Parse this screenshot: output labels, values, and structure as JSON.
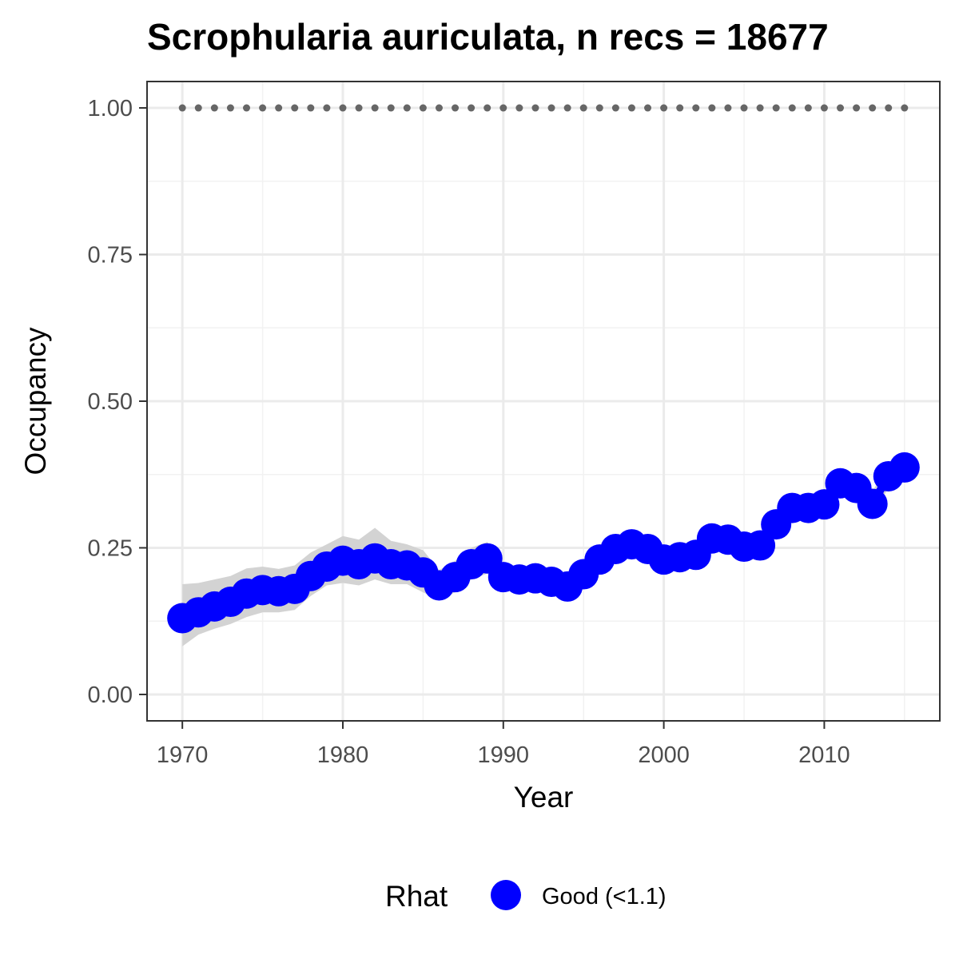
{
  "chart_data": {
    "type": "line",
    "title": "Scrophularia auriculata, n recs = 18677",
    "xlabel": "Year",
    "ylabel": "Occupancy",
    "xlim": [
      1967.8,
      2017.2
    ],
    "ylim": [
      -0.045,
      1.045
    ],
    "x_ticks": [
      1970,
      1980,
      1990,
      2000,
      2010
    ],
    "x_tick_labels": [
      "1970",
      "1980",
      "1990",
      "2000",
      "2010"
    ],
    "y_ticks": [
      0,
      0.25,
      0.5,
      0.75,
      1
    ],
    "y_tick_labels": [
      "0.00",
      "0.25",
      "0.50",
      "0.75",
      "1.00"
    ],
    "grid": true,
    "series": [
      {
        "name": "Good (<1.1)",
        "color": "#0000ff",
        "x": [
          1970,
          1971,
          1972,
          1973,
          1974,
          1975,
          1976,
          1977,
          1978,
          1979,
          1980,
          1981,
          1982,
          1983,
          1984,
          1985,
          1986,
          1987,
          1988,
          1989,
          1990,
          1991,
          1992,
          1993,
          1994,
          1995,
          1996,
          1997,
          1998,
          1999,
          2000,
          2001,
          2002,
          2003,
          2004,
          2005,
          2006,
          2007,
          2008,
          2009,
          2010,
          2011,
          2012,
          2013,
          2014,
          2015
        ],
        "y": [
          0.13,
          0.14,
          0.15,
          0.158,
          0.172,
          0.178,
          0.176,
          0.18,
          0.202,
          0.218,
          0.228,
          0.222,
          0.232,
          0.222,
          0.22,
          0.208,
          0.186,
          0.2,
          0.222,
          0.232,
          0.2,
          0.196,
          0.198,
          0.192,
          0.184,
          0.205,
          0.23,
          0.248,
          0.256,
          0.248,
          0.23,
          0.234,
          0.238,
          0.266,
          0.264,
          0.252,
          0.254,
          0.29,
          0.318,
          0.318,
          0.324,
          0.36,
          0.352,
          0.325,
          0.372,
          0.387
        ],
        "lower": [
          0.082,
          0.102,
          0.112,
          0.12,
          0.132,
          0.14,
          0.14,
          0.144,
          0.168,
          0.186,
          0.19,
          0.186,
          0.196,
          0.188,
          0.188,
          0.174,
          0.162,
          0.174,
          0.196,
          0.206,
          0.18,
          0.178,
          0.18,
          0.174,
          0.168,
          0.188,
          0.212,
          0.23,
          0.238,
          0.232,
          0.214,
          0.218,
          0.222,
          0.248,
          0.246,
          0.236,
          0.238,
          0.272,
          0.298,
          0.3,
          0.306,
          0.338,
          0.332,
          0.306,
          0.352,
          0.366
        ],
        "upper": [
          0.188,
          0.19,
          0.196,
          0.202,
          0.215,
          0.218,
          0.214,
          0.22,
          0.242,
          0.256,
          0.27,
          0.264,
          0.284,
          0.262,
          0.256,
          0.246,
          0.212,
          0.228,
          0.25,
          0.26,
          0.222,
          0.216,
          0.218,
          0.212,
          0.204,
          0.224,
          0.25,
          0.268,
          0.276,
          0.266,
          0.248,
          0.252,
          0.256,
          0.286,
          0.284,
          0.27,
          0.272,
          0.31,
          0.338,
          0.336,
          0.344,
          0.384,
          0.374,
          0.346,
          0.394,
          0.41
        ]
      }
    ],
    "reference_line": {
      "y": 1.0,
      "style": "dotted",
      "color": "#666666"
    },
    "ribbon_color": "#d3d3d3",
    "legend": {
      "title": "Rhat",
      "position": "bottom",
      "entries": [
        {
          "label": "Good (<1.1)",
          "color": "#0000ff"
        }
      ]
    }
  }
}
